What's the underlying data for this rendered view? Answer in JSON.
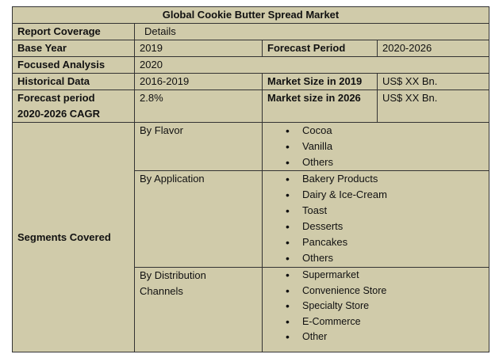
{
  "title": "Global Cookie Butter Spread Market",
  "rows": {
    "coverage": {
      "label": "Report Coverage",
      "value": "Details"
    },
    "base_year": {
      "label": "Base Year",
      "value": "2019",
      "label2": "Forecast Period",
      "value2": "2020-2026"
    },
    "focused": {
      "label": "Focused Analysis",
      "value": "2020"
    },
    "historical": {
      "label": "Historical Data",
      "value": "2016-2019",
      "label2": "Market Size in 2019",
      "value2": "US$ XX Bn."
    },
    "forecast": {
      "label_line1": "Forecast period",
      "label_line2": "2020-2026 CAGR",
      "value": "2.8%",
      "label2": "Market size in 2026",
      "value2": "US$ XX Bn."
    }
  },
  "segments": {
    "label": "Segments Covered",
    "flavor": {
      "label": "By Flavor",
      "items": [
        "Cocoa",
        "Vanilla",
        "Others"
      ]
    },
    "application": {
      "label": "By Application",
      "items": [
        "Bakery Products",
        "Dairy & Ice-Cream",
        "Toast",
        "Desserts",
        "Pancakes",
        "Others"
      ]
    },
    "distribution": {
      "label_line1": "By Distribution",
      "label_line2": "Channels",
      "items": [
        "Supermarket",
        "Convenience Store",
        "Specialty Store",
        "E-Commerce",
        "Other"
      ]
    }
  },
  "colors": {
    "cell_background": "#d0cbaa",
    "border": "#333333"
  }
}
